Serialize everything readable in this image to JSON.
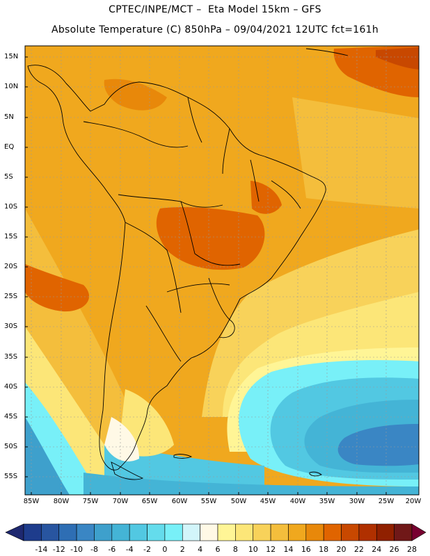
{
  "header": {
    "line1": "CPTEC/INPE/MCT –  Eta Model 15km – GFS",
    "line2": "Absolute Temperature (C) 850hPa – 09/04/2021 12UTC fct=161h"
  },
  "map": {
    "lat_labels": [
      "15N",
      "10N",
      "5N",
      "EQ",
      "5S",
      "10S",
      "15S",
      "20S",
      "25S",
      "30S",
      "35S",
      "40S",
      "45S",
      "50S",
      "55S"
    ],
    "lon_labels": [
      "85W",
      "80W",
      "75W",
      "70W",
      "65W",
      "60W",
      "55W",
      "50W",
      "45W",
      "40W",
      "35W",
      "30W",
      "25W",
      "20W"
    ]
  },
  "colorbar": {
    "labels": [
      "-14",
      "-12",
      "-10",
      "-8",
      "-6",
      "-4",
      "-2",
      "0",
      "2",
      "4",
      "6",
      "8",
      "10",
      "12",
      "14",
      "16",
      "18",
      "20",
      "22",
      "24",
      "26",
      "28"
    ],
    "colors": [
      "#1e3c8c",
      "#2855a0",
      "#2e6eb4",
      "#3a86c4",
      "#3ea0cc",
      "#44b4d6",
      "#52c8e2",
      "#64dcec",
      "#78f0f8",
      "#d2f5fa",
      "#fff9e6",
      "#fff596",
      "#fce678",
      "#f8d25a",
      "#f4be3c",
      "#f0a81e",
      "#e8880a",
      "#e06400",
      "#c84800",
      "#b03000",
      "#902000",
      "#701818"
    ],
    "low_arrow_color": "#1e2870",
    "high_arrow_color": "#780030"
  }
}
